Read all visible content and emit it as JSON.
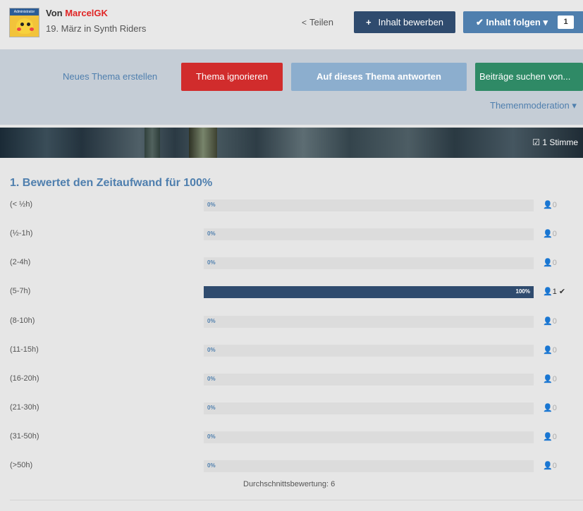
{
  "header": {
    "author_prefix": "Von",
    "author_name": "MarcelGK",
    "date_location": "19. März in Synth Riders",
    "avatar_badge": "Administrator",
    "share_label": "Teilen",
    "share_icon": "share-icon",
    "promote_label": "Inhalt bewerben",
    "follow_label": "Inhalt folgen",
    "follow_count": "1"
  },
  "actions": {
    "new_topic": "Neues Thema erstellen",
    "ignore": "Thema ignorieren",
    "reply": "Auf dieses Thema antworten",
    "search_posts": "Beiträge suchen von...",
    "moderation": "Themenmoderation"
  },
  "banner": {
    "votes": "1 Stimme"
  },
  "poll": {
    "title": "1. Bewertet den Zeitaufwand für 100%",
    "options": [
      {
        "label": "(< ½h)",
        "percent": 0,
        "percent_text": "0%",
        "count": "0",
        "voted": false
      },
      {
        "label": "(½-1h)",
        "percent": 0,
        "percent_text": "0%",
        "count": "0",
        "voted": false
      },
      {
        "label": "(2-4h)",
        "percent": 0,
        "percent_text": "0%",
        "count": "0",
        "voted": false
      },
      {
        "label": "(5-7h)",
        "percent": 100,
        "percent_text": "100%",
        "count": "1",
        "voted": true
      },
      {
        "label": "(8-10h)",
        "percent": 0,
        "percent_text": "0%",
        "count": "0",
        "voted": false
      },
      {
        "label": "(11-15h)",
        "percent": 0,
        "percent_text": "0%",
        "count": "0",
        "voted": false
      },
      {
        "label": "(16-20h)",
        "percent": 0,
        "percent_text": "0%",
        "count": "0",
        "voted": false
      },
      {
        "label": "(21-30h)",
        "percent": 0,
        "percent_text": "0%",
        "count": "0",
        "voted": false
      },
      {
        "label": "(31-50h)",
        "percent": 0,
        "percent_text": "0%",
        "count": "0",
        "voted": false
      },
      {
        "label": "(>50h)",
        "percent": 0,
        "percent_text": "0%",
        "count": "0",
        "voted": false
      }
    ],
    "average": "Durchschnittsbewertung: 6"
  },
  "colors": {
    "accent": "#4f7fae",
    "promote": "#2f4b6e",
    "danger": "#d12c2c",
    "success": "#2f8a66",
    "author": "#e02424"
  }
}
